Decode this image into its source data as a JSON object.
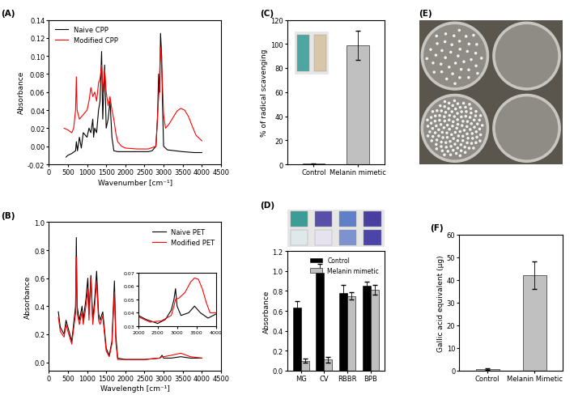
{
  "chart_data": [
    {
      "type": "line",
      "title": "(A)",
      "x_label": "Wavenumber [cm⁻¹]",
      "y_label": "Absorbance",
      "xlim": [
        0,
        4500
      ],
      "xticks": [
        0,
        500,
        1000,
        1500,
        2000,
        2500,
        3000,
        3500,
        4000,
        4500
      ],
      "ylim": [
        -0.02,
        0.14
      ],
      "yticks": [
        -0.02,
        {
          "value": 0,
          "label": "0.00"
        },
        0.02,
        0.04,
        0.06,
        0.08,
        {
          "value": 0.1,
          "label": "0.10"
        },
        0.12,
        0.14
      ],
      "legend": "upper left",
      "series": [
        {
          "name": "Naive CPP",
          "color": "#000000",
          "x": [
            450,
            500,
            600,
            700,
            720,
            750,
            800,
            850,
            900,
            1000,
            1050,
            1100,
            1150,
            1170,
            1200,
            1250,
            1300,
            1340,
            1380,
            1410,
            1460,
            1500,
            1550,
            1600,
            1650,
            1700,
            1800,
            2000,
            2200,
            2400,
            2600,
            2700,
            2800,
            2840,
            2870,
            2900,
            2920,
            2950,
            2970,
            3000,
            3100,
            3300,
            3500,
            3800,
            4000
          ],
          "values": [
            -0.012,
            -0.01,
            -0.008,
            -0.005,
            0.005,
            -0.005,
            0.01,
            -0.002,
            0.015,
            0.01,
            0.02,
            0.015,
            0.03,
            0.01,
            0.02,
            0.015,
            0.04,
            0.05,
            0.105,
            0.03,
            0.09,
            0.02,
            0.03,
            0.05,
            0.01,
            -0.005,
            -0.006,
            -0.006,
            -0.006,
            -0.006,
            -0.006,
            -0.005,
            0.0,
            0.03,
            0.08,
            0.06,
            0.125,
            0.1,
            0.05,
            0.0,
            -0.004,
            -0.005,
            -0.006,
            -0.007,
            -0.007
          ]
        },
        {
          "name": "Modified CPP",
          "color": "#ff0000",
          "x": [
            400,
            500,
            600,
            650,
            700,
            720,
            740,
            800,
            900,
            1000,
            1050,
            1100,
            1150,
            1200,
            1250,
            1300,
            1340,
            1380,
            1420,
            1460,
            1500,
            1550,
            1600,
            1650,
            1700,
            1750,
            1800,
            1900,
            2000,
            2300,
            2600,
            2800,
            2850,
            2880,
            2920,
            2960,
            3000,
            3050,
            3150,
            3250,
            3350,
            3450,
            3550,
            3650,
            3750,
            3850,
            4000
          ],
          "values": [
            0.02,
            0.018,
            0.015,
            0.02,
            0.04,
            0.077,
            0.04,
            0.03,
            0.035,
            0.04,
            0.05,
            0.065,
            0.055,
            0.06,
            0.05,
            0.07,
            0.075,
            0.09,
            0.06,
            0.085,
            0.06,
            0.045,
            0.055,
            0.04,
            0.03,
            0.015,
            0.005,
            0.0,
            -0.002,
            -0.003,
            -0.003,
            0.0,
            0.04,
            0.06,
            0.11,
            0.08,
            0.035,
            0.02,
            0.025,
            0.032,
            0.039,
            0.042,
            0.04,
            0.033,
            0.022,
            0.012,
            0.006
          ]
        }
      ]
    },
    {
      "type": "line",
      "title": "(B)",
      "x_label": "Wavelength [cm⁻¹]",
      "y_label": "Absorbance",
      "xlim": [
        0,
        4500
      ],
      "xticks": [
        0,
        500,
        1000,
        1500,
        2000,
        2500,
        3000,
        3500,
        4000,
        4500
      ],
      "ylim": [
        -0.06,
        1.0
      ],
      "yticks": [
        0.0,
        0.2,
        0.4,
        0.6,
        0.8,
        1.0
      ],
      "legend": "upper right",
      "series": [
        {
          "name": "Naive PET",
          "color": "#000000",
          "x": [
            250,
            300,
            400,
            450,
            500,
            600,
            700,
            720,
            740,
            800,
            870,
            900,
            970,
            1020,
            1050,
            1100,
            1150,
            1200,
            1250,
            1300,
            1340,
            1410,
            1450,
            1500,
            1580,
            1650,
            1715,
            1750,
            1800,
            2000,
            2500,
            2900,
            2960,
            3000,
            3200,
            3450,
            3700,
            4000
          ],
          "values": [
            0.36,
            0.25,
            0.2,
            0.3,
            0.25,
            0.15,
            0.4,
            0.89,
            0.4,
            0.3,
            0.4,
            0.3,
            0.45,
            0.6,
            0.35,
            0.62,
            0.3,
            0.45,
            0.65,
            0.35,
            0.3,
            0.36,
            0.25,
            0.1,
            0.05,
            0.15,
            0.58,
            0.2,
            0.03,
            0.02,
            0.02,
            0.03,
            0.05,
            0.03,
            0.03,
            0.04,
            0.03,
            0.03
          ]
        },
        {
          "name": "Modified PET",
          "color": "#ff0000",
          "x": [
            250,
            300,
            400,
            450,
            500,
            600,
            700,
            720,
            740,
            800,
            870,
            900,
            970,
            1020,
            1050,
            1100,
            1150,
            1200,
            1250,
            1300,
            1340,
            1410,
            1450,
            1500,
            1580,
            1650,
            1715,
            1750,
            1800,
            2000,
            2500,
            2900,
            2960,
            3000,
            3200,
            3450,
            3700,
            4000
          ],
          "values": [
            0.32,
            0.22,
            0.18,
            0.27,
            0.22,
            0.13,
            0.35,
            0.75,
            0.35,
            0.27,
            0.36,
            0.27,
            0.4,
            0.52,
            0.3,
            0.6,
            0.27,
            0.4,
            0.58,
            0.3,
            0.27,
            0.33,
            0.22,
            0.08,
            0.04,
            0.13,
            0.5,
            0.15,
            0.02,
            0.02,
            0.02,
            0.03,
            0.04,
            0.04,
            0.05,
            0.065,
            0.04,
            0.03
          ]
        }
      ]
    },
    {
      "type": "line",
      "xlim": [
        2000,
        4000
      ],
      "xticks": [
        2000,
        2500,
        3000,
        3500,
        4000
      ],
      "ylim": [
        0.03,
        0.07
      ],
      "yticks": [
        0.03,
        0.04,
        0.05,
        0.06,
        0.07
      ],
      "series": [
        {
          "color": "#000000",
          "x": [
            2000,
            2200,
            2500,
            2700,
            2850,
            2920,
            2960,
            3000,
            3100,
            3300,
            3450,
            3600,
            3800,
            4000
          ],
          "values": [
            0.038,
            0.035,
            0.032,
            0.035,
            0.042,
            0.05,
            0.058,
            0.045,
            0.038,
            0.04,
            0.045,
            0.04,
            0.036,
            0.039
          ]
        },
        {
          "color": "#ff0000",
          "x": [
            2000,
            2300,
            2600,
            2850,
            2920,
            2960,
            3050,
            3200,
            3350,
            3450,
            3550,
            3650,
            3750,
            3850,
            4000
          ],
          "values": [
            0.037,
            0.033,
            0.034,
            0.038,
            0.045,
            0.05,
            0.051,
            0.055,
            0.063,
            0.066,
            0.065,
            0.058,
            0.048,
            0.04,
            0.04
          ]
        }
      ]
    },
    {
      "type": "bar",
      "title": "(C)",
      "y_label": "% of radical scavenging",
      "categories": [
        "Control",
        "Melanin mimetic"
      ],
      "values": [
        0.5,
        99
      ],
      "errors": [
        0.3,
        12
      ],
      "colors": [
        "#c0c0c0",
        "#c0c0c0"
      ],
      "ylim": [
        0,
        120
      ],
      "yticks": [
        0,
        20,
        40,
        60,
        80,
        100,
        120
      ]
    },
    {
      "type": "bar",
      "title": "(D)",
      "y_label": "Absorbance",
      "categories": [
        "MG",
        "CV",
        "RBBR",
        "BPB"
      ],
      "series": [
        {
          "name": "Control",
          "color": "#000000",
          "values": [
            0.63,
            0.98,
            0.78,
            0.85
          ],
          "errors": [
            0.07,
            0.09,
            0.08,
            0.04
          ]
        },
        {
          "name": "Melanin mimetic",
          "color": "#c0c0c0",
          "values": [
            0.1,
            0.11,
            0.75,
            0.81
          ],
          "errors": [
            0.02,
            0.03,
            0.04,
            0.05
          ]
        }
      ],
      "legend": "upper right",
      "ylim": [
        0.0,
        1.2
      ],
      "yticks": [
        0.0,
        0.2,
        0.4,
        0.6,
        0.8,
        1.0,
        1.2
      ]
    },
    {
      "type": "image",
      "title": "(E)"
    },
    {
      "type": "bar",
      "title": "(F)",
      "y_label": "Gallic acid equivalent (µg)",
      "categories": [
        "Control",
        "Melanin Mimetic"
      ],
      "values": [
        0.7,
        42
      ],
      "errors": [
        0.3,
        6
      ],
      "colors": [
        "#c0c0c0",
        "#c0c0c0"
      ],
      "ylim": [
        0,
        60
      ],
      "yticks": [
        0,
        10,
        20,
        30,
        40,
        50,
        60
      ]
    }
  ]
}
